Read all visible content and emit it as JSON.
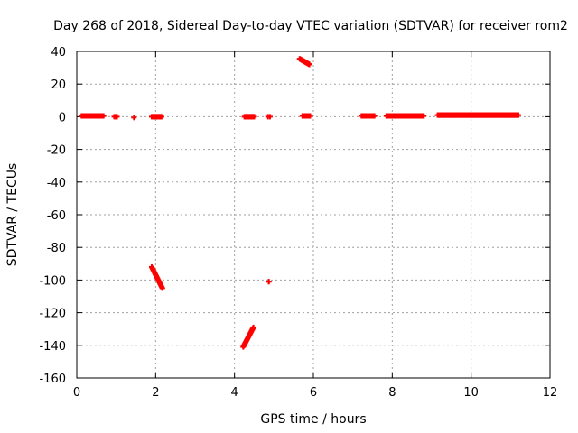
{
  "chart_data": {
    "type": "scatter",
    "title": "Day 268 of 2018, Sidereal Day-to-day VTEC variation (SDTVAR) for receiver rom2",
    "xlabel": "GPS time / hours",
    "ylabel": "SDTVAR / TECUs",
    "xlim": [
      0,
      12
    ],
    "ylim": [
      -160,
      40
    ],
    "grid": true,
    "point_color": "#ff0000",
    "x_ticks": [
      0,
      2,
      4,
      6,
      8,
      10,
      12
    ],
    "y_ticks": [
      40,
      20,
      0,
      -20,
      -40,
      -60,
      -80,
      -100,
      -120,
      -140,
      -160
    ],
    "segments": [
      {
        "x0": 0.12,
        "x1": 0.68,
        "y0": 0.5,
        "y1": 0.5,
        "n": 40
      },
      {
        "x0": 0.95,
        "x1": 1.02,
        "y0": 0,
        "y1": 0,
        "n": 3
      },
      {
        "x0": 1.45,
        "x1": 1.45,
        "y0": -0.5,
        "y1": -0.5,
        "n": 1
      },
      {
        "x0": 1.9,
        "x1": 2.15,
        "y0": 0,
        "y1": 0,
        "n": 14
      },
      {
        "x0": 1.9,
        "x1": 2.17,
        "y0": -92,
        "y1": -105,
        "n": 22
      },
      {
        "x0": 4.25,
        "x1": 4.5,
        "y0": 0,
        "y1": 0,
        "n": 14
      },
      {
        "x0": 4.22,
        "x1": 4.48,
        "y0": -141,
        "y1": -129,
        "n": 24
      },
      {
        "x0": 4.85,
        "x1": 4.9,
        "y0": 0,
        "y1": 0,
        "n": 2
      },
      {
        "x0": 4.87,
        "x1": 4.87,
        "y0": -101,
        "y1": -101,
        "n": 2
      },
      {
        "x0": 5.65,
        "x1": 5.9,
        "y0": 35.5,
        "y1": 32,
        "n": 20
      },
      {
        "x0": 5.72,
        "x1": 5.92,
        "y0": 0.5,
        "y1": 0.5,
        "n": 12
      },
      {
        "x0": 7.22,
        "x1": 7.55,
        "y0": 0.5,
        "y1": 0.5,
        "n": 22
      },
      {
        "x0": 7.85,
        "x1": 8.8,
        "y0": 0.5,
        "y1": 0.5,
        "n": 60
      },
      {
        "x0": 9.15,
        "x1": 11.2,
        "y0": 1,
        "y1": 1,
        "n": 130
      }
    ]
  }
}
